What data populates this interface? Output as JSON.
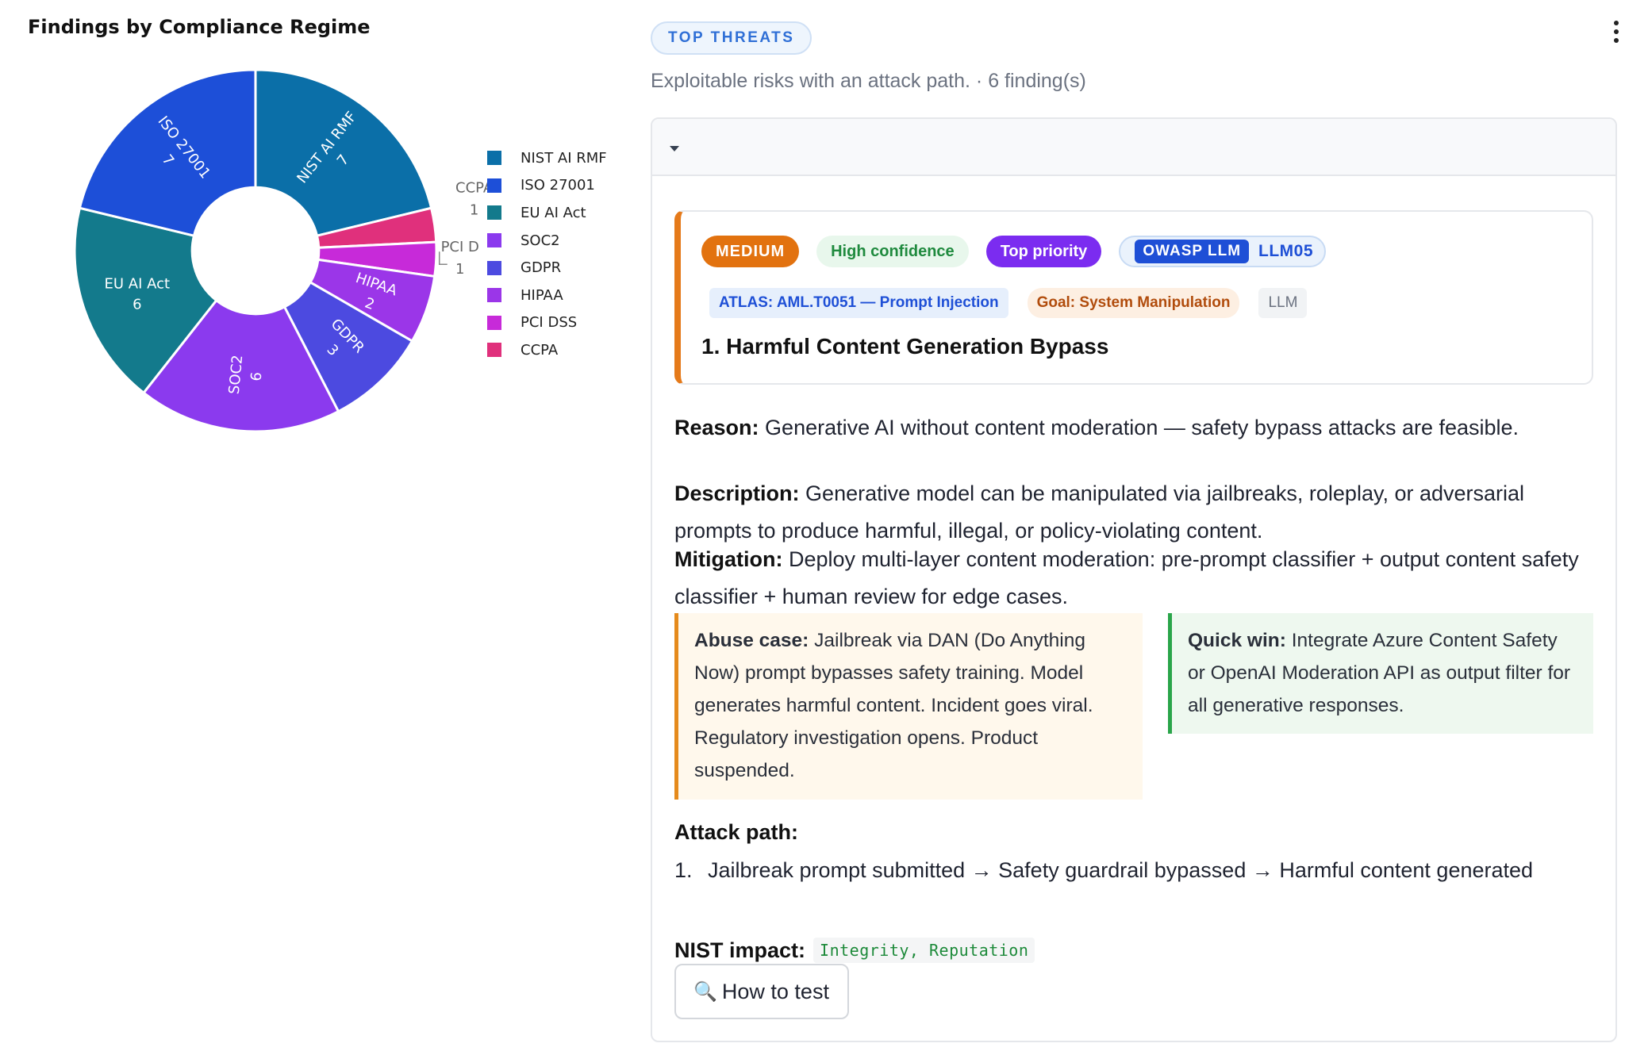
{
  "chart": {
    "title": "Findings by Compliance Regime",
    "legend_labels": [
      "NIST AI RMF",
      "ISO 27001",
      "EU AI Act",
      "SOC2",
      "GDPR",
      "HIPAA",
      "PCI DSS",
      "CCPA"
    ]
  },
  "chart_data": {
    "type": "pie",
    "title": "Findings by Compliance Regime",
    "hole": 0.35,
    "slices": [
      {
        "label": "NIST AI RMF",
        "value": 7,
        "color": "#0b6fa8"
      },
      {
        "label": "CCPA",
        "value": 1,
        "color": "#e0307c"
      },
      {
        "label": "PCI DSS",
        "value": 1,
        "color": "#c72ad9"
      },
      {
        "label": "HIPAA",
        "value": 2,
        "color": "#9b36e8"
      },
      {
        "label": "GDPR",
        "value": 3,
        "color": "#4c4ae0"
      },
      {
        "label": "SOC2",
        "value": 6,
        "color": "#8b3aee"
      },
      {
        "label": "EU AI Act",
        "value": 6,
        "color": "#137a8c"
      },
      {
        "label": "ISO 27001",
        "value": 7,
        "color": "#1d4fd8"
      }
    ],
    "legend_order": [
      "NIST AI RMF",
      "ISO 27001",
      "EU AI Act",
      "SOC2",
      "GDPR",
      "HIPAA",
      "PCI DSS",
      "CCPA"
    ],
    "slice_labels": {
      "NIST AI RMF": "NIST AI RMF",
      "ISO 27001": "ISO 27001",
      "EU AI Act": "EU AI Act",
      "SOC2": "SOC2",
      "GDPR": "GDPR",
      "HIPAA": "HIPAA",
      "PCI DSS": "PCI D",
      "CCPA": "CCPA"
    },
    "legend_placement": "right"
  },
  "section": {
    "pill": "TOP THREATS",
    "subtitle": "Exploitable risks with an attack path.  ·  6 finding(s)"
  },
  "finding": {
    "severity": "MEDIUM",
    "confidence": "High confidence",
    "priority": "Top priority",
    "owasp_tag": "OWASP LLM",
    "owasp_code": "LLM05",
    "atlas": "ATLAS: AML.T0051 — Prompt Injection",
    "goal": "Goal: System Manipulation",
    "category": "LLM",
    "title": "1. Harmful Content Generation Bypass",
    "reason_label": "Reason:",
    "reason": "Generative AI without content moderation — safety bypass attacks are feasible.",
    "description_label": "Description:",
    "description": "Generative model can be manipulated via jailbreaks, roleplay, or adversarial prompts to produce harmful, illegal, or policy-violating content.",
    "mitigation_label": "Mitigation:",
    "mitigation": "Deploy multi-layer content moderation: pre-prompt classifier + output content safety classifier + human review for edge cases.",
    "abuse_label": "Abuse case:",
    "abuse": "Jailbreak via DAN (Do Anything Now) prompt bypasses safety training. Model generates harmful content. Incident goes viral. Regulatory investigation opens. Product suspended.",
    "quickwin_label": "Quick win:",
    "quickwin": "Integrate Azure Content Safety or OpenAI Moderation API as output filter for all generative responses.",
    "attack_label": "Attack path:",
    "attack_num": "1.",
    "attack_step": "Jailbreak prompt submitted → Safety guardrail bypassed → Harmful content generated",
    "nist_label": "NIST impact:",
    "nist_value": "Integrity, Reputation",
    "howto_icon": "magnifier-icon",
    "howto_label": "How to test"
  }
}
